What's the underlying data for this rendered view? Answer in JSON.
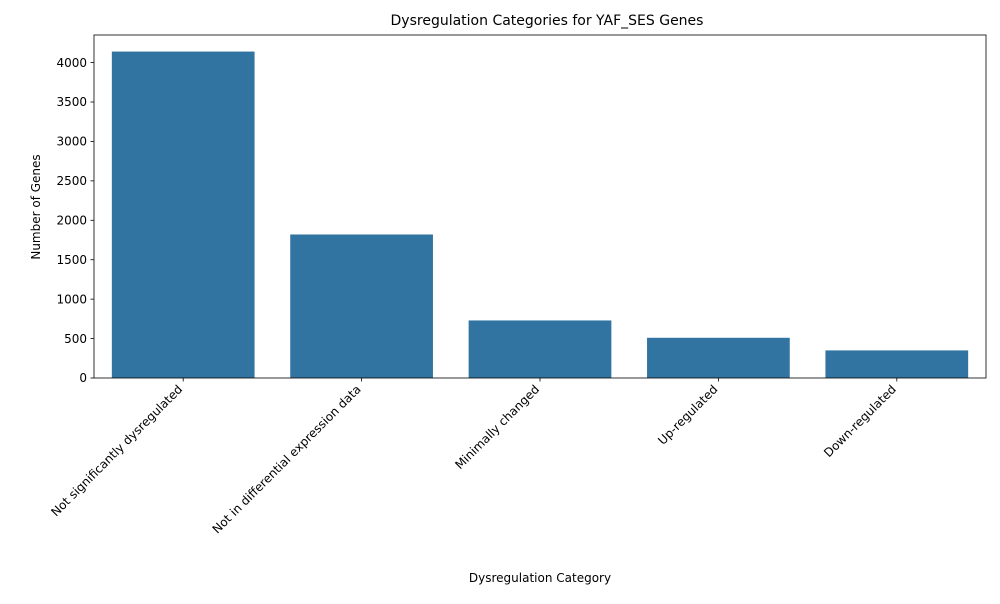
{
  "chart_data": {
    "type": "bar",
    "title": "Dysregulation Categories for YAF_SES Genes",
    "xlabel": "Dysregulation Category",
    "ylabel": "Number of Genes",
    "categories": [
      "Not significantly dysregulated",
      "Not in differential expression data",
      "Minimally changed",
      "Up-regulated",
      "Down-regulated"
    ],
    "values": [
      4140,
      1820,
      730,
      510,
      350
    ],
    "ylim": [
      0,
      4350
    ],
    "yticks": [
      0,
      500,
      1000,
      1500,
      2000,
      2500,
      3000,
      3500,
      4000
    ],
    "grid": false,
    "legend": "none",
    "colors": {
      "bar": "#3274a1",
      "axis": "#000000"
    }
  }
}
